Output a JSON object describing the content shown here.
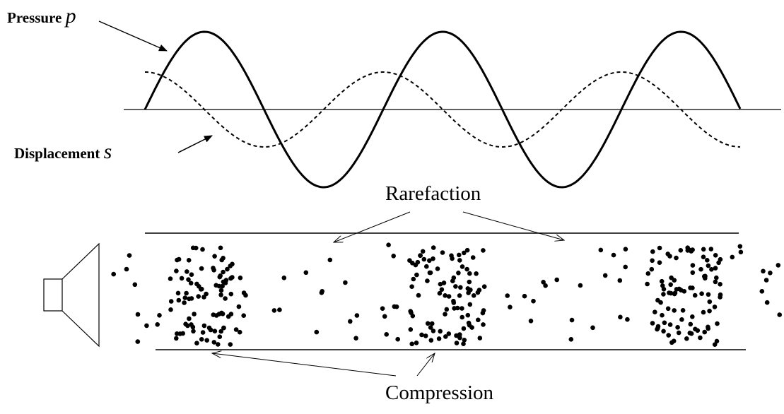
{
  "labels": {
    "pressure": {
      "text": "Pressure",
      "symbol": "p"
    },
    "displacement": {
      "text": "Displacement",
      "symbol": "s"
    },
    "rarefaction": "Rarefaction",
    "compression": "Compression"
  }
}
